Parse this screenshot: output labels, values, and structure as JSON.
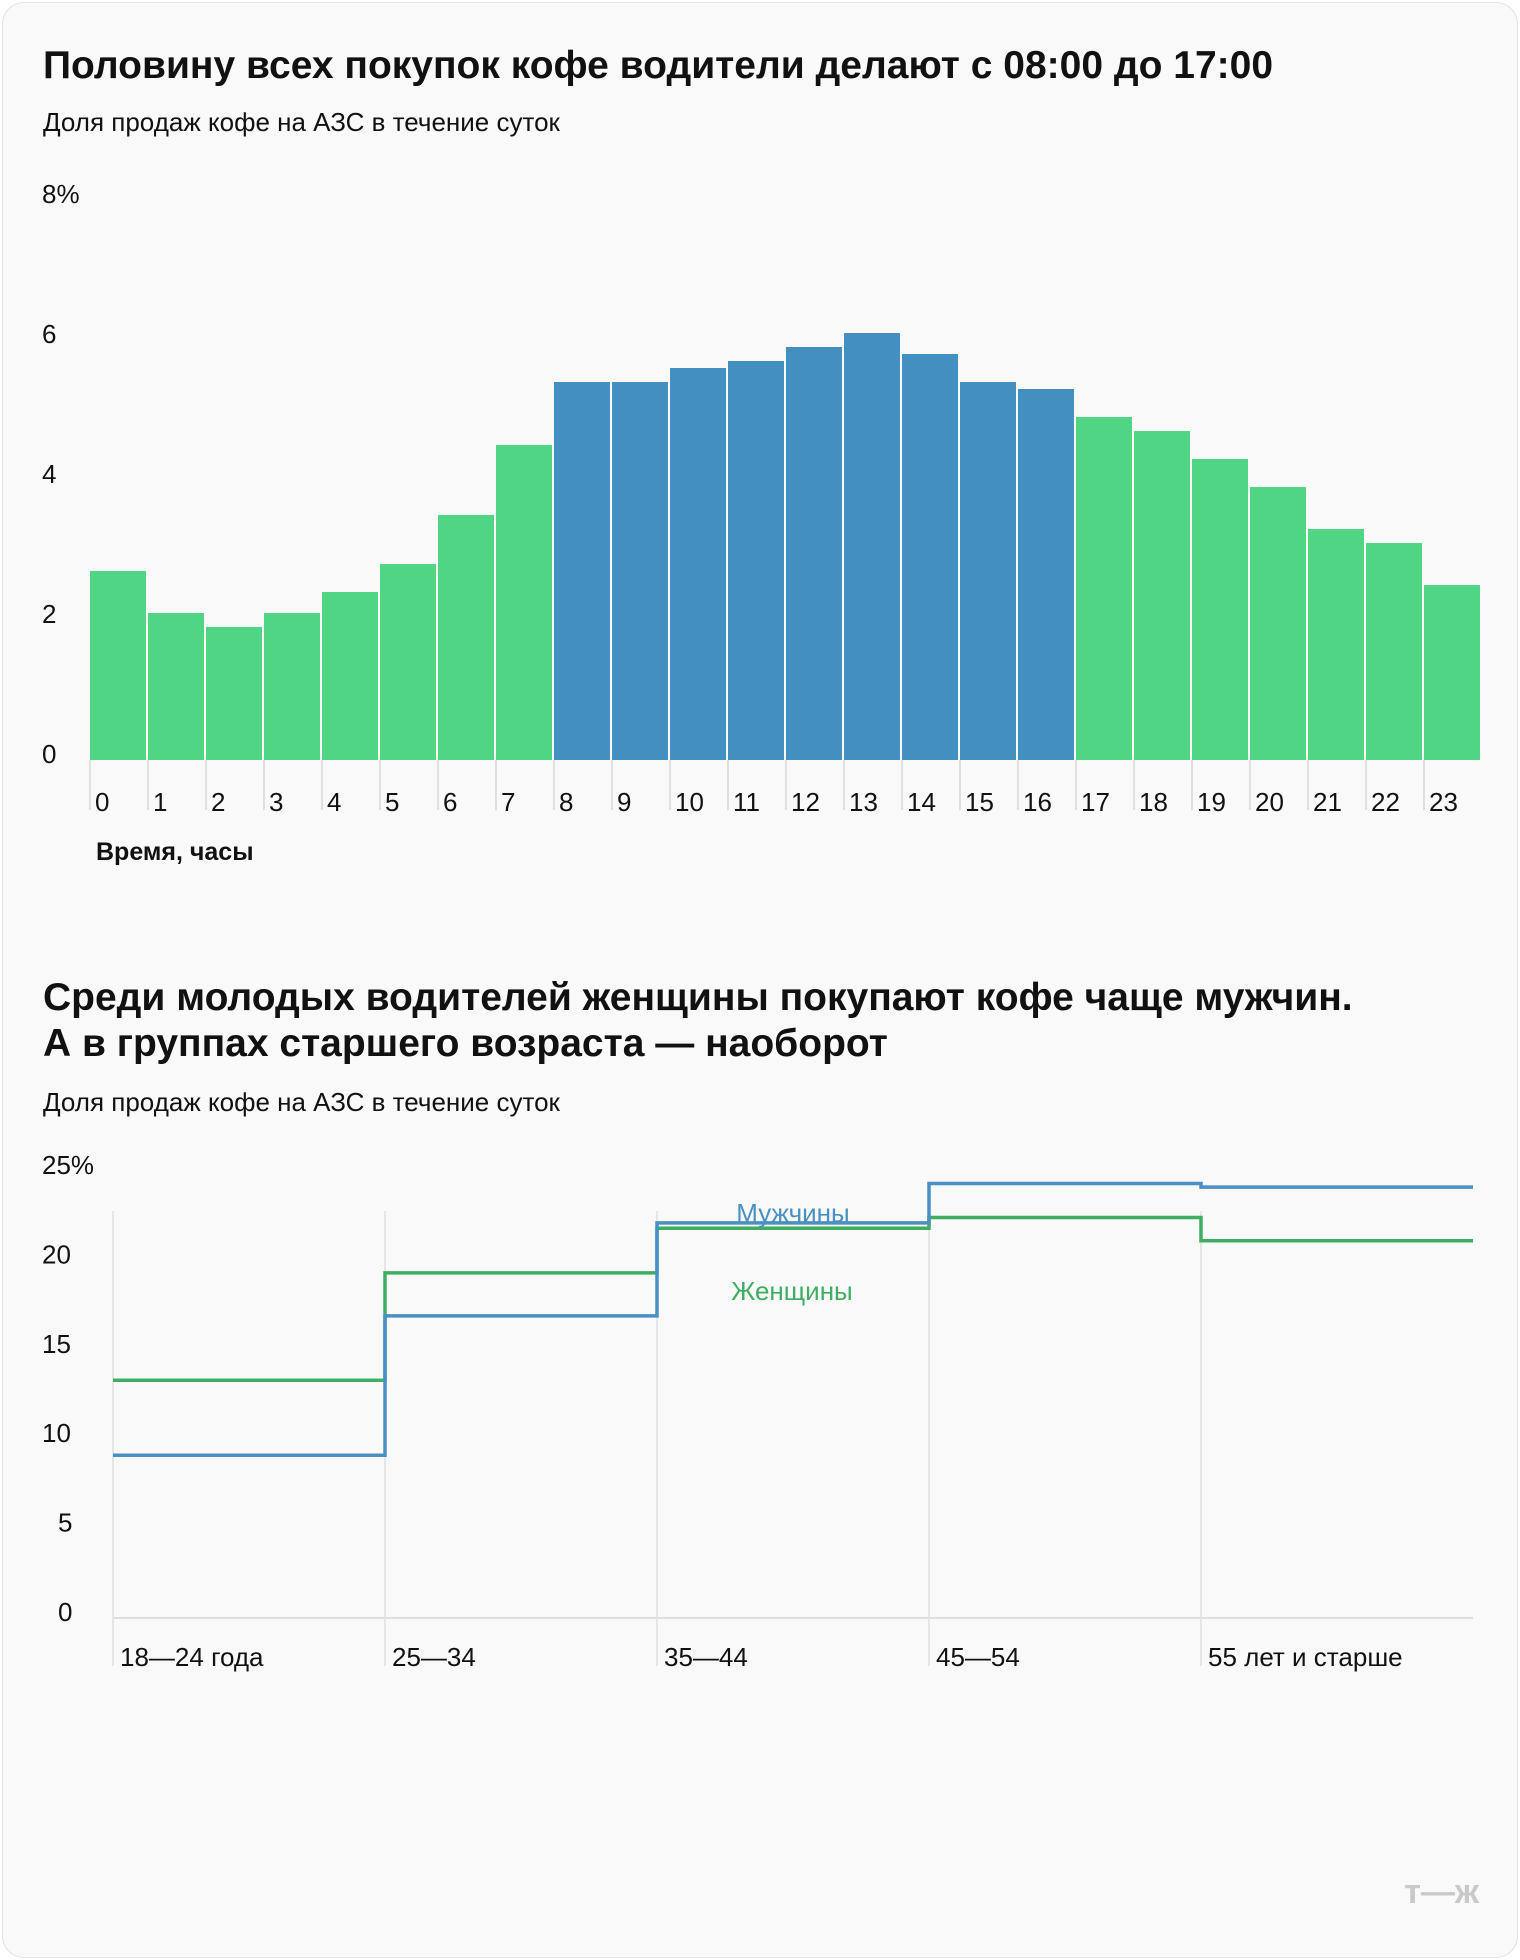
{
  "chart_data": [
    {
      "type": "bar",
      "title": "Половину всех покупок кофе водители делают с 08:00 до 17:00",
      "subtitle": "Доля продаж кофе на АЗС в течение суток",
      "xlabel": "Время, часы",
      "ylabel": "",
      "ylim": [
        0,
        8
      ],
      "yticks": [
        "0",
        "2",
        "4",
        "6",
        "8%"
      ],
      "categories": [
        "0",
        "1",
        "2",
        "3",
        "4",
        "5",
        "6",
        "7",
        "8",
        "9",
        "10",
        "11",
        "12",
        "13",
        "14",
        "15",
        "16",
        "17",
        "18",
        "19",
        "20",
        "21",
        "22",
        "23"
      ],
      "values": [
        2.7,
        2.1,
        1.9,
        2.1,
        2.4,
        2.8,
        3.5,
        4.5,
        5.4,
        5.4,
        5.6,
        5.7,
        5.9,
        6.1,
        5.8,
        5.4,
        5.3,
        4.9,
        4.7,
        4.3,
        3.9,
        3.3,
        3.1,
        2.5
      ],
      "highlight_range": [
        "8",
        "16"
      ],
      "colors": {
        "base": "#4fd584",
        "highlight": "#438fc0"
      },
      "grid": false
    },
    {
      "type": "line",
      "style": "step",
      "title_lines": [
        "Среди молодых водителей женщины покупают кофе чаще мужчин.",
        "А в группах старшего возраста — наоборот"
      ],
      "subtitle": "Доля продаж кофе на АЗС в течение суток",
      "ylim": [
        0,
        25
      ],
      "yticks": [
        "0",
        "5",
        "10",
        "15",
        "20",
        "25%"
      ],
      "categories": [
        "18—24 года",
        "25—34",
        "35—44",
        "45—54",
        "55 лет и старше"
      ],
      "series": [
        {
          "name": "Мужчины",
          "values": [
            9.1,
            16.9,
            22.1,
            24.3,
            24.1
          ],
          "color": "#4a90c2"
        },
        {
          "name": "Женщины",
          "values": [
            13.3,
            19.3,
            21.8,
            22.4,
            21.1
          ],
          "color": "#3fae63"
        }
      ],
      "grid": "vertical"
    }
  ],
  "logo": "т—ж"
}
